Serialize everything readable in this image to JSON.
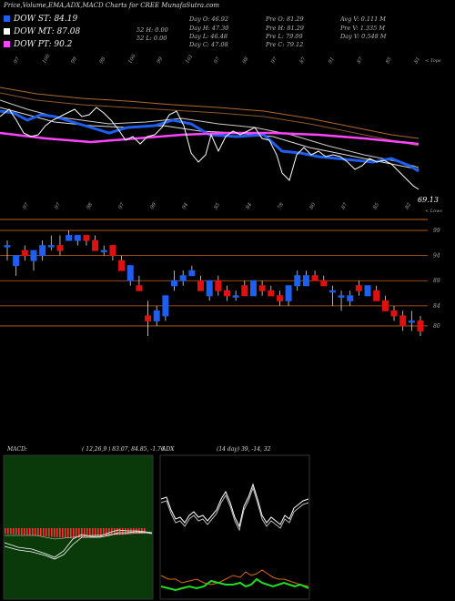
{
  "title": "Price,Volume,EMA,ADX,MACD Charts for CREE MunafaSutra.com",
  "legend": [
    {
      "label": "DOW ST: 84.19",
      "color": "#1e5ef0"
    },
    {
      "label": "DOW MT: 87.08",
      "color": "#ffffff"
    },
    {
      "label": "DOW PT: 90.2",
      "color": "#ff44ff"
    }
  ],
  "stats": {
    "col1": [
      "",
      "52  H: 0.00",
      "52  L: 0.00"
    ],
    "col2": [
      "Day  O: 46.92",
      "Day  H: 47.30",
      "Day  L: 46.48",
      "Day  C: 47.08"
    ],
    "col3": [
      "Pre   O: 81.29",
      "Pre   H: 81.29",
      "Pre   L: 79.09",
      "Pre   C: 79.12"
    ],
    "col4": [
      "Avg V: 0.111  M",
      "Pre   V: 1.335  M",
      "Day V: 0.548  M"
    ]
  },
  "ema_panel": {
    "top_ticks": [
      "97",
      "100",
      "99",
      "98",
      "100",
      "99",
      "101",
      "97",
      "98",
      "97",
      "87",
      "91",
      "87",
      "85",
      "81"
    ],
    "bottom_ticks": [
      "97",
      "97",
      "98",
      "97",
      "99",
      "94",
      "85",
      "84",
      "78",
      "80",
      "87",
      "85",
      "82"
    ],
    "top_label": "< Tops",
    "bottom_label": "< Lows",
    "last_value": "69.13"
  },
  "price_axis": [
    "99",
    "94",
    "89",
    "84",
    "80"
  ],
  "macd": {
    "label": "MACD:",
    "values": "( 12,26,9 ) 83.07,  84.85, -1.76"
  },
  "adx": {
    "label": "ADX",
    "values": "(14  day) 39, -14,  32"
  },
  "chart_data": {
    "type": "candlestick",
    "series": [
      {
        "open": 96,
        "high": 97,
        "low": 93,
        "close": 96
      },
      {
        "open": 92,
        "high": 94,
        "low": 90,
        "close": 94
      },
      {
        "open": 95,
        "high": 96,
        "low": 93,
        "close": 94
      },
      {
        "open": 93,
        "high": 95,
        "low": 91,
        "close": 95
      },
      {
        "open": 94,
        "high": 97,
        "low": 93,
        "close": 96
      },
      {
        "open": 96,
        "high": 98,
        "low": 95,
        "close": 96
      },
      {
        "open": 96,
        "high": 98,
        "low": 94,
        "close": 95
      },
      {
        "open": 97,
        "high": 99,
        "low": 97,
        "close": 98
      },
      {
        "open": 97,
        "high": 98,
        "low": 96,
        "close": 98
      },
      {
        "open": 98,
        "high": 98,
        "low": 96,
        "close": 97
      },
      {
        "open": 97,
        "high": 98,
        "low": 95,
        "close": 95
      },
      {
        "open": 95,
        "high": 96,
        "low": 94,
        "close": 95
      },
      {
        "open": 96,
        "high": 96,
        "low": 93,
        "close": 94
      },
      {
        "open": 93,
        "high": 94,
        "low": 91,
        "close": 91
      },
      {
        "open": 89,
        "high": 92,
        "low": 88,
        "close": 92
      },
      {
        "open": 88,
        "high": 90,
        "low": 87,
        "close": 87
      },
      {
        "open": 82,
        "high": 85,
        "low": 78,
        "close": 81
      },
      {
        "open": 81,
        "high": 84,
        "low": 80,
        "close": 83
      },
      {
        "open": 82,
        "high": 86,
        "low": 81,
        "close": 86
      },
      {
        "open": 88,
        "high": 91,
        "low": 87,
        "close": 89
      },
      {
        "open": 89,
        "high": 91,
        "low": 88,
        "close": 90
      },
      {
        "open": 90,
        "high": 92,
        "low": 90,
        "close": 91
      },
      {
        "open": 89,
        "high": 90,
        "low": 87,
        "close": 87
      },
      {
        "open": 86,
        "high": 89,
        "low": 85,
        "close": 89
      },
      {
        "open": 89,
        "high": 90,
        "low": 86,
        "close": 87
      },
      {
        "open": 87,
        "high": 88,
        "low": 85,
        "close": 86
      },
      {
        "open": 86,
        "high": 87,
        "low": 85,
        "close": 86
      },
      {
        "open": 88,
        "high": 89,
        "low": 86,
        "close": 86
      },
      {
        "open": 86,
        "high": 89,
        "low": 86,
        "close": 89
      },
      {
        "open": 88,
        "high": 89,
        "low": 86,
        "close": 87
      },
      {
        "open": 87,
        "high": 88,
        "low": 86,
        "close": 86
      },
      {
        "open": 86,
        "high": 87,
        "low": 84,
        "close": 85
      },
      {
        "open": 85,
        "high": 88,
        "low": 84,
        "close": 88
      },
      {
        "open": 88,
        "high": 91,
        "low": 87,
        "close": 90
      },
      {
        "open": 88,
        "high": 91,
        "low": 88,
        "close": 90
      },
      {
        "open": 90,
        "high": 91,
        "low": 89,
        "close": 89
      },
      {
        "open": 89,
        "high": 90,
        "low": 88,
        "close": 88
      },
      {
        "open": 87,
        "high": 88,
        "low": 84,
        "close": 87
      },
      {
        "open": 86,
        "high": 87,
        "low": 83,
        "close": 86
      },
      {
        "open": 85,
        "high": 87,
        "low": 84,
        "close": 86
      },
      {
        "open": 88,
        "high": 89,
        "low": 86,
        "close": 87
      },
      {
        "open": 86,
        "high": 88,
        "low": 86,
        "close": 88
      },
      {
        "open": 87,
        "high": 88,
        "low": 85,
        "close": 85
      },
      {
        "open": 85,
        "high": 86,
        "low": 83,
        "close": 83
      },
      {
        "open": 83,
        "high": 84,
        "low": 81,
        "close": 82
      },
      {
        "open": 82,
        "high": 83,
        "low": 79,
        "close": 80
      },
      {
        "open": 81,
        "high": 83,
        "low": 79,
        "close": 81
      },
      {
        "open": 81,
        "high": 82,
        "low": 78,
        "close": 79
      }
    ],
    "ylim": [
      76,
      101
    ],
    "horizontal_levels": [
      99,
      94,
      89,
      84,
      80
    ]
  }
}
